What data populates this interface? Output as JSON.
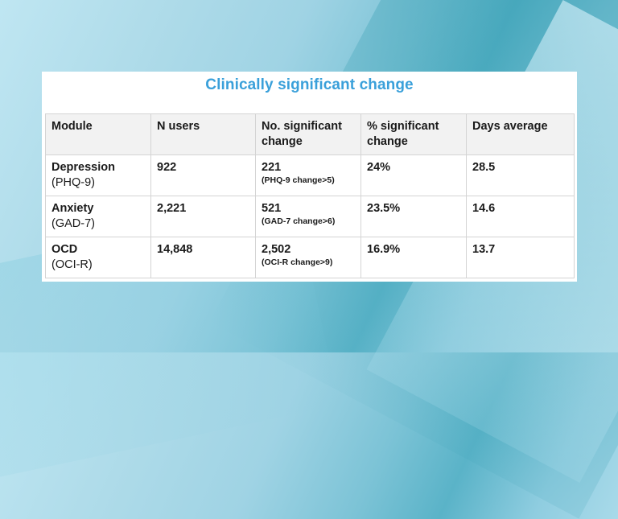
{
  "title": "Clinically significant change",
  "colors": {
    "title": "#3aa0da",
    "percent": "#3aa0da",
    "header_bg": "#f2f2f2",
    "border": "#d4d4d4"
  },
  "table": {
    "headers": [
      "Module",
      "N users",
      "No. significant change",
      "% significant change",
      "Days average"
    ],
    "rows": [
      {
        "module": "Depression",
        "scale": "(PHQ-9)",
        "n_users": "922",
        "significant": "221",
        "criterion": "(PHQ-9 change>5)",
        "percent": "24%",
        "days_average": "28.5"
      },
      {
        "module": "Anxiety",
        "scale": "(GAD-7)",
        "n_users": "2,221",
        "significant": "521",
        "criterion": "(GAD-7 change>6)",
        "percent": "23.5%",
        "days_average": "14.6"
      },
      {
        "module": "OCD",
        "scale": "(OCI-R)",
        "n_users": "14,848",
        "significant": "2,502",
        "criterion": "(OCI-R change>9)",
        "percent": "16.9%",
        "days_average": "13.7"
      }
    ]
  }
}
